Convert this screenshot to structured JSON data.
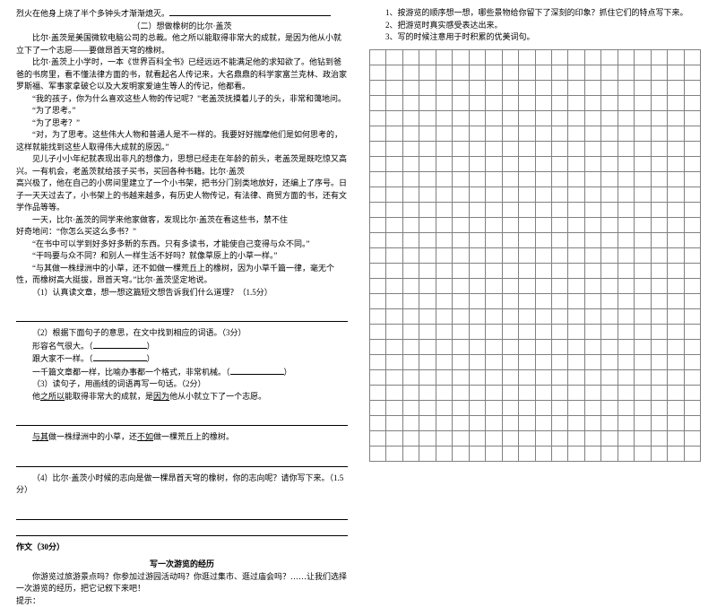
{
  "left": {
    "l1": "烈火在他身上烧了半个多钟头才渐渐熄灭。",
    "passage_title": "（二）想做橡树的比尔·盖茨",
    "p1": "比尔·盖茨是美国微软电脑公司的总裁。他之所以能取得非常大的成就，是因为他从小就立下了一个志愿——要做昂首天穹的橡树。",
    "p2": "比尔·盖茨上小学时，一本《世界百科全书》已经远远不能满足他的求知欲了。他钻到爸爸的书房里，看不懂法律方面的书，就看起名人传记来，大名鼎鼎的科学家富兰克林、政治家罗斯福、军事家拿破仑以及大发明家爱迪生等人的传记，他都看。",
    "d1": "“我的孩子，你为什么喜欢这些人物的传记呢？”老盖茨抚摸着儿子的头，非常和蔼地问。",
    "d2": "“为了思考。”",
    "d3": "“为了思考？”",
    "d4": "“对，为了思考。这些伟大人物和普通人是不一样的。我要好好揣摩他们是如何思考的，这样就能找到这些人取得伟大成就的原因。”",
    "p3": "见儿子小小年纪就表现出非凡的想像力，思想已经走在年龄的前头，老盖茨是既吃惊又高兴。一有机会，老盖茨就给孩子买书，买回各种书籍。比尔·盖茨",
    "p4": "高兴极了，他在自己的小房间里建立了一个小书架，把书分门别类地放好，还编上了序号。日子一天天过去了，小书架上的书越来越多，有历史人物传记，有法律、商贸方面的书，还有文学作品等等。",
    "p5": "一天，比尔·盖茨的同学来他家做客，发现比尔·盖茨在看这些书，禁不住",
    "d5": "好奇地问：“你怎么买这么多书？”",
    "d6": "“在书中可以学到好多好多新的东西。只有多读书，才能使自己变得与众不同。”",
    "d7": "“干吗要与众不同？和别人一样生活不好吗？就像草原上的小草一样。”",
    "d8": "“与其做一株绿洲中的小草，还不如做一棵荒丘上的橡树，因为小草千篇一律，毫无个性，而橡树高大挺拔，昂首天穹。”比尔·盖茨坚定地说。",
    "q1": "（1）认真读文章，想一想这篇短文想告诉我们什么道理？（1.5分）",
    "q2": "（2）根据下面句子的意思，在文中找到相应的词语。（3分）",
    "q2a_label": "形容名气很大。（",
    "q2b_label": "跟大家不一样。（",
    "q2c_label": "一千篇文章都一样，比喻办事都一个格式，非常机械。（",
    "close_paren": "）",
    "q3": "（3）读句子，用画线的词语再写一句话。（2分）",
    "q3_ex": "他之所以能取得非常大的成就，是因为他从小就立下了一个志愿。",
    "q3_u1": "之所以",
    "q3_u2": "因为",
    "q4_ex": "与其做一株绿洲中的小草，还不如做一棵荒丘上的橡树。",
    "q4_u1": "与其",
    "q4_u2": "不如",
    "q5": "（4）比尔·盖茨小时候的志向是做一棵昂首天穹的橡树，你的志向呢？请你写下来。（1.5分）",
    "composition": "作文（30分）",
    "comp_title": "写一次游览的经历",
    "comp_body": "你游览过旅游景点吗？你参加过游园活动吗？你逛过集市、逛过庙会吗？……让我们选择一次游览的经历，把它记叙下来吧！",
    "tip": "提示："
  },
  "right": {
    "t1": "1、按游览的顺序想一想，哪些景物给你留下了深刻的印象？抓住它们的特点写下来。",
    "t2": "2、把游览时真实感受表达出来。",
    "t3": "3、写的时候注意用于时积累的优美词句。"
  },
  "grid": {
    "rows": 27,
    "cols": 20
  }
}
